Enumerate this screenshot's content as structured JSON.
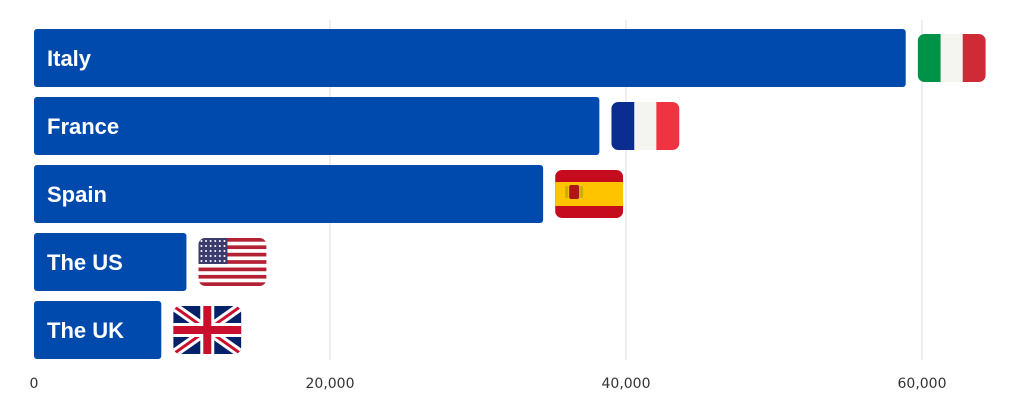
{
  "chart_data": {
    "type": "bar",
    "orientation": "horizontal",
    "categories": [
      "Italy",
      "France",
      "Spain",
      "The US",
      "The UK"
    ],
    "values": [
      58900,
      38200,
      34400,
      10300,
      8600
    ],
    "xlim": [
      0,
      65000
    ],
    "ticks": [
      0,
      20000,
      40000,
      60000
    ],
    "tick_labels": [
      "0",
      "20,000",
      "40,000",
      "60,000"
    ],
    "grid": "vertical",
    "title": "",
    "xlabel": "",
    "ylabel": "",
    "flags": [
      "italy-flag",
      "france-flag",
      "spain-flag",
      "us-flag",
      "uk-flag"
    ]
  },
  "colors": {
    "bar": "#004aad",
    "grid": "#dddddd",
    "label": "#ffffff",
    "tick": "#333333"
  }
}
